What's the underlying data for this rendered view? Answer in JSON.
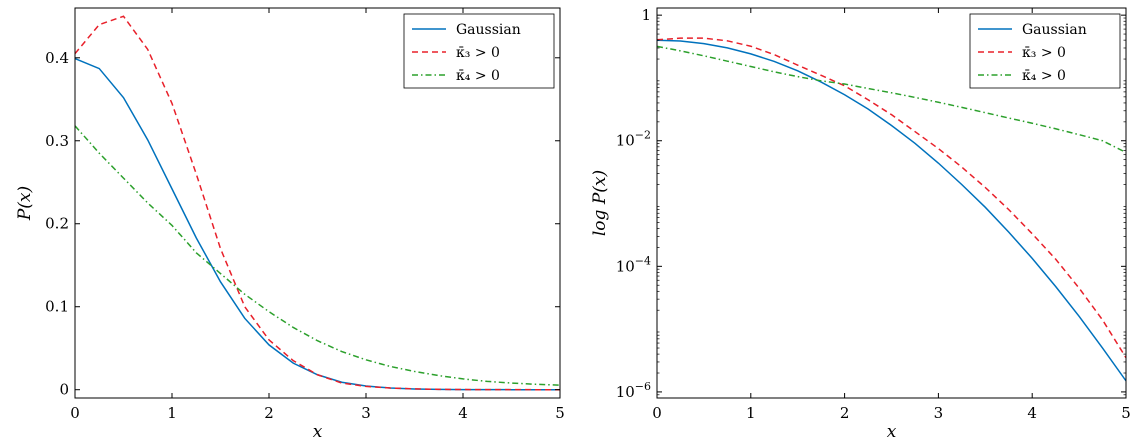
{
  "chart_data": [
    {
      "type": "line",
      "xlabel": "x",
      "ylabel": "P(x)",
      "xlim": [
        0,
        5
      ],
      "ylim": [
        -0.01,
        0.46
      ],
      "yscale": "linear",
      "xticks": [
        0,
        1,
        2,
        3,
        4,
        5
      ],
      "xtick_labels": [
        "0",
        "1",
        "2",
        "3",
        "4",
        "5"
      ],
      "yticks": [
        0,
        0.1,
        0.2,
        0.3,
        0.4
      ],
      "ytick_labels": [
        "0",
        "0.1",
        "0.2",
        "0.3",
        "0.4"
      ],
      "grid": false,
      "legend_position": "top-right",
      "x": [
        0,
        0.25,
        0.5,
        0.75,
        1,
        1.25,
        1.5,
        1.75,
        2,
        2.25,
        2.5,
        2.75,
        3,
        3.25,
        3.5,
        3.75,
        4,
        4.25,
        4.5,
        4.75,
        5
      ],
      "series": [
        {
          "name": "Gaussian",
          "color": "#0072bd",
          "dash": "solid",
          "values": [
            0.399,
            0.387,
            0.352,
            0.301,
            0.242,
            0.183,
            0.13,
            0.086,
            0.054,
            0.032,
            0.018,
            0.009,
            0.0044,
            0.002,
            0.0009,
            0.0004,
            0.0001,
            5e-05,
            2e-05,
            1e-05,
            1e-06
          ]
        },
        {
          "name": "κ̄₃ > 0",
          "color": "#e8202a",
          "dash": "dashed",
          "values": [
            0.405,
            0.44,
            0.45,
            0.41,
            0.345,
            0.26,
            0.17,
            0.1,
            0.06,
            0.035,
            0.018,
            0.008,
            0.004,
            0.002,
            0.001,
            0.0004,
            0.0002,
            0.0001,
            5e-05,
            2e-05,
            1e-05
          ]
        },
        {
          "name": "κ̄₄ > 0",
          "color": "#2ca02c",
          "dash": "dashdot",
          "values": [
            0.318,
            0.285,
            0.255,
            0.225,
            0.198,
            0.165,
            0.14,
            0.115,
            0.094,
            0.075,
            0.059,
            0.046,
            0.036,
            0.028,
            0.022,
            0.017,
            0.013,
            0.01,
            0.008,
            0.0065,
            0.0055
          ]
        }
      ]
    },
    {
      "type": "line",
      "xlabel": "x",
      "ylabel": "log P(x)",
      "xlim": [
        0,
        5
      ],
      "ylim": [
        8e-07,
        1.3
      ],
      "yscale": "log",
      "xticks": [
        0,
        1,
        2,
        3,
        4,
        5
      ],
      "xtick_labels": [
        "0",
        "1",
        "2",
        "3",
        "4",
        "5"
      ],
      "yticks": [
        1e-06,
        0.0001,
        0.01,
        1
      ],
      "ytick_labels": [
        {
          "base": "10",
          "exp": "−6"
        },
        {
          "base": "10",
          "exp": "−4"
        },
        {
          "base": "10",
          "exp": "−2"
        },
        {
          "base": "1",
          "exp": ""
        }
      ],
      "grid": false,
      "legend_position": "top-right",
      "x": [
        0,
        0.25,
        0.5,
        0.75,
        1,
        1.25,
        1.5,
        1.75,
        2,
        2.25,
        2.5,
        2.75,
        3,
        3.25,
        3.5,
        3.75,
        4,
        4.25,
        4.5,
        4.75,
        5
      ],
      "series": [
        {
          "name": "Gaussian",
          "color": "#0072bd",
          "dash": "solid",
          "values": [
            0.399,
            0.387,
            0.352,
            0.301,
            0.242,
            0.183,
            0.13,
            0.086,
            0.054,
            0.032,
            0.0175,
            0.0091,
            0.0044,
            0.002,
            0.00087,
            0.00035,
            0.000134,
            4.77e-05,
            1.6e-05,
            5e-06,
            1.5e-06
          ]
        },
        {
          "name": "κ̄₃ > 0",
          "color": "#e8202a",
          "dash": "dashed",
          "values": [
            0.405,
            0.43,
            0.43,
            0.39,
            0.32,
            0.235,
            0.16,
            0.11,
            0.075,
            0.045,
            0.026,
            0.014,
            0.0075,
            0.0038,
            0.0018,
            0.0008,
            0.00033,
            0.00013,
            4.5e-05,
            1.4e-05,
            3.5e-06
          ]
        },
        {
          "name": "κ̄₄ > 0",
          "color": "#2ca02c",
          "dash": "dashdot",
          "values": [
            0.318,
            0.27,
            0.225,
            0.185,
            0.152,
            0.125,
            0.105,
            0.09,
            0.08,
            0.068,
            0.058,
            0.049,
            0.041,
            0.034,
            0.028,
            0.023,
            0.019,
            0.0155,
            0.0125,
            0.01,
            0.0065
          ]
        }
      ]
    }
  ]
}
